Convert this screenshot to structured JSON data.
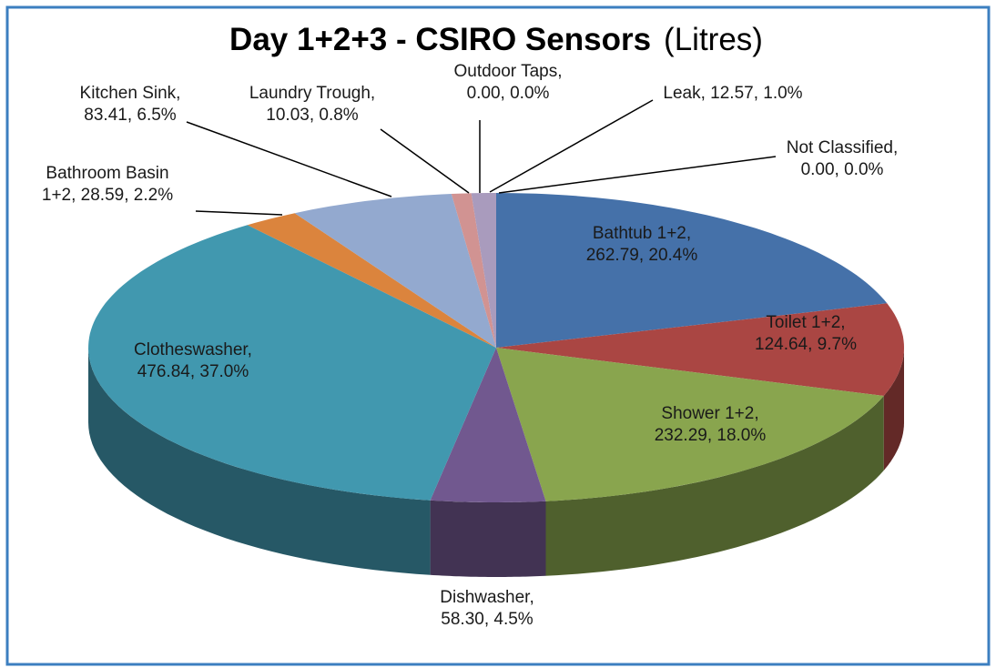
{
  "chart_data": {
    "type": "pie3d",
    "title": "Day 1+2+3 - CSIRO Sensors",
    "subtitle": "(Litres)",
    "categories": [
      "Bathtub 1+2",
      "Toilet 1+2",
      "Shower 1+2",
      "Dishwasher",
      "Clotheswasher",
      "Bathroom Basin 1+2",
      "Kitchen Sink",
      "Laundry Trough",
      "Outdoor Taps",
      "Leak",
      "Not Classified"
    ],
    "values": [
      262.79,
      124.64,
      232.29,
      58.3,
      476.84,
      28.59,
      83.41,
      10.03,
      0.0,
      12.57,
      0.0
    ],
    "value_labels": [
      "Bathtub 1+2, 262.79, 20.4%",
      "Toilet 1+2, 124.64, 9.7%",
      "Shower 1+2, 232.29, 18.0%",
      "Dishwasher, 58.30, 4.5%",
      "Clotheswasher, 476.84, 37.0%",
      "Bathroom Basin 1+2, 28.59, 2.2%",
      "Kitchen Sink, 83.41, 6.5%",
      "Laundry Trough, 10.03, 0.8%",
      "Outdoor Taps, 0.00, 0.0%",
      "Leak, 12.57, 1.0%",
      "Not Classified, 0.00, 0.0%"
    ],
    "colors": [
      "#4571a9",
      "#aa4643",
      "#89a54e",
      "#71588f",
      "#4198af",
      "#db843d",
      "#93a9cf",
      "#d19392",
      "#b9cd96",
      "#a99bbd",
      "#92cddc"
    ]
  }
}
